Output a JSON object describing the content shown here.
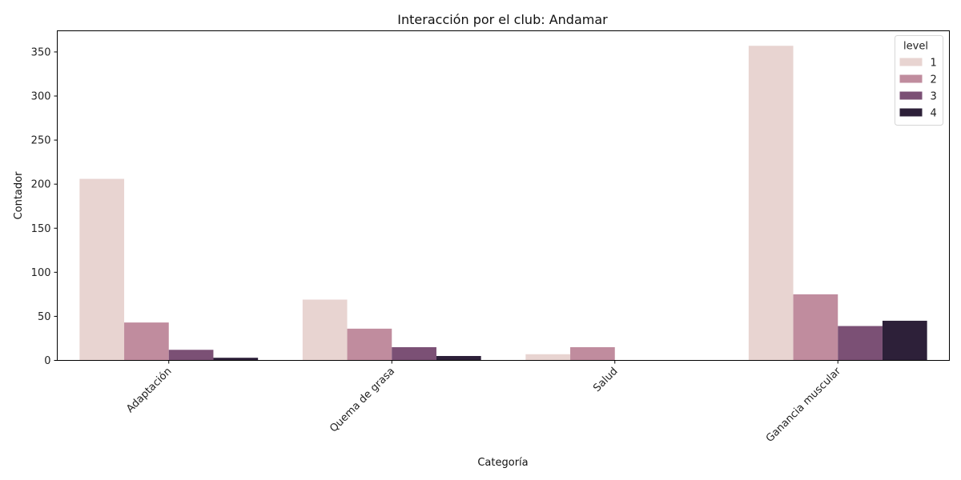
{
  "chart_data": {
    "type": "bar",
    "title": "Interacción por el club: Andamar",
    "xlabel": "Categoría",
    "ylabel": "Contador",
    "categories": [
      "Adaptación",
      "Quema de grasa",
      "Salud",
      "Ganancia muscular"
    ],
    "yticks": [
      0,
      50,
      100,
      150,
      200,
      250,
      300,
      350
    ],
    "ylim": [
      0,
      374
    ],
    "grid": false,
    "legend": {
      "title": "level",
      "placement": "top-right"
    },
    "series": [
      {
        "name": "1",
        "color": "#e8d4d1",
        "values": [
          206,
          69,
          7,
          357
        ]
      },
      {
        "name": "2",
        "color": "#c08c9e",
        "values": [
          43,
          36,
          15,
          75
        ]
      },
      {
        "name": "3",
        "color": "#7b5075",
        "values": [
          12,
          15,
          0,
          39
        ]
      },
      {
        "name": "4",
        "color": "#2d2039",
        "values": [
          3,
          5,
          0,
          45
        ]
      }
    ]
  }
}
